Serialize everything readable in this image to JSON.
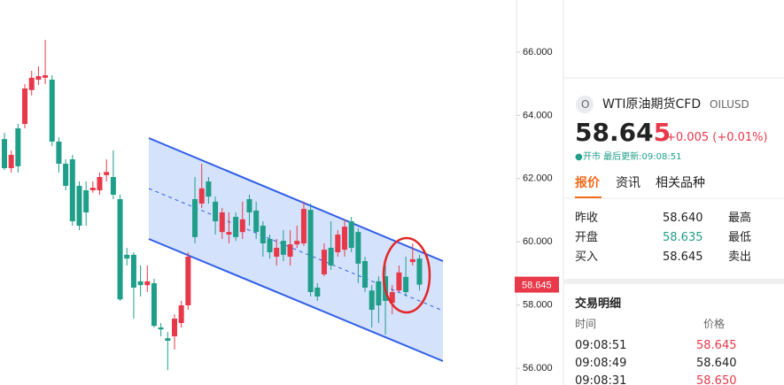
{
  "chart_data": {
    "type": "candlestick",
    "open": [
      63.25,
      62.33,
      63.59,
      63.73,
      64.8,
      65.13,
      65.19,
      65.13,
      63.17,
      62.47,
      62.61,
      61.77,
      61.63,
      61.63,
      61.63,
      62.11,
      62.05,
      61.35,
      59.59,
      59.59,
      58.75,
      58.63,
      58.69,
      57.29,
      56.95,
      57.01,
      57.43,
      57.99,
      61.35,
      61.21,
      61.91,
      61.27,
      60.31,
      60.23,
      60.79,
      60.31,
      61.35,
      60.99,
      60.51,
      60.09,
      59.53,
      60.03,
      59.53,
      59.92,
      59.95,
      61.01,
      58.55,
      58.97,
      59.81,
      59.67,
      59.75,
      60.65,
      60.31,
      59.39,
      58.46,
      58.75,
      58.91,
      58.07,
      58.46,
      58.89,
      59.36,
      59.47
    ],
    "high": [
      63.45,
      62.89,
      63.73,
      64.99,
      65.41,
      65.55,
      66.39,
      65.27,
      63.31,
      62.61,
      62.75,
      61.91,
      61.91,
      61.91,
      62.19,
      62.61,
      62.89,
      61.49,
      59.81,
      59.67,
      59.25,
      59.25,
      58.83,
      57.43,
      57.15,
      57.71,
      58.13,
      59.67,
      62.05,
      62.47,
      62.05,
      61.43,
      61.07,
      60.93,
      60.93,
      61.27,
      61.49,
      61.27,
      60.65,
      60.23,
      60.09,
      60.37,
      60.37,
      60.51,
      61.27,
      61.21,
      58.69,
      59.95,
      60.65,
      60.37,
      60.71,
      60.79,
      60.43,
      59.53,
      58.63,
      58.91,
      59.25,
      58.63,
      59.25,
      59.53,
      59.95,
      59.59
    ],
    "low": [
      62.27,
      62.19,
      62.19,
      63.59,
      64.63,
      64.96,
      64.99,
      63.03,
      62.19,
      61.63,
      60.51,
      60.37,
      60.51,
      61.55,
      61.49,
      61.91,
      61.35,
      58.13,
      59.25,
      57.57,
      58.27,
      58.41,
      57.29,
      57.01,
      55.94,
      56.59,
      57.29,
      57.85,
      59.95,
      61.07,
      61.21,
      60.23,
      60.09,
      59.95,
      60.03,
      60.09,
      60.51,
      60.09,
      59.53,
      59.47,
      59.25,
      59.39,
      59.25,
      59.81,
      59.87,
      58.27,
      58.13,
      58.91,
      59.11,
      59.53,
      59.53,
      59.67,
      58.69,
      58.41,
      57.29,
      57.43,
      57.06,
      57.71,
      58.41,
      58.27,
      59.25,
      58.46
    ],
    "close": [
      62.33,
      62.75,
      62.39,
      64.85,
      65.19,
      65.24,
      65.27,
      63.17,
      62.47,
      61.77,
      60.65,
      60.51,
      60.93,
      61.71,
      62.05,
      62.21,
      61.49,
      58.18,
      59.47,
      58.55,
      58.63,
      58.75,
      57.34,
      57.23,
      56.87,
      57.57,
      57.99,
      59.53,
      60.15,
      61.69,
      61.43,
      60.65,
      60.93,
      60.31,
      60.15,
      60.71,
      60.93,
      60.31,
      59.95,
      59.67,
      59.81,
      59.59,
      59.92,
      60.03,
      61.04,
      58.41,
      58.27,
      59.75,
      59.25,
      60.23,
      60.48,
      59.81,
      59.31,
      58.55,
      57.85,
      57.99,
      58.13,
      58.41,
      59.03,
      58.41,
      59.45,
      58.645
    ],
    "up_color": "#e8394a",
    "down_color": "#1f9e8a",
    "ylim": [
      55.47,
      67.65
    ],
    "yticks": [
      {
        "value": 56,
        "label": "56.000"
      },
      {
        "value": 58,
        "label": "58.000"
      },
      {
        "value": 60,
        "label": "60.000"
      },
      {
        "value": 62,
        "label": "62.000"
      },
      {
        "value": 64,
        "label": "64.000"
      },
      {
        "value": 66,
        "label": "66.000"
      }
    ],
    "last_price": {
      "value": 58.645,
      "label": "58.645"
    }
  },
  "panel": {
    "icon": "O",
    "name": "WTI原油期货CFD",
    "symbol": "OILUSD",
    "price": "58.645",
    "change": "+0.005 (+0.01%)",
    "status": "开市 最后更新:09:08:51",
    "tabs": [
      "报价",
      "资讯",
      "相关品种"
    ],
    "quote_rows": [
      [
        "昨收",
        "58.640",
        "最高"
      ],
      [
        "开盘",
        "58.635",
        "最低"
      ],
      [
        "买入",
        "58.645",
        "卖出"
      ]
    ],
    "trades_title": "交易明细",
    "trades_header": [
      "时间",
      "价格"
    ],
    "trades": [
      [
        "09:08:51",
        "58.645"
      ],
      [
        "09:08:49",
        "58.640"
      ],
      [
        "09:08:31",
        "58.650"
      ]
    ]
  }
}
